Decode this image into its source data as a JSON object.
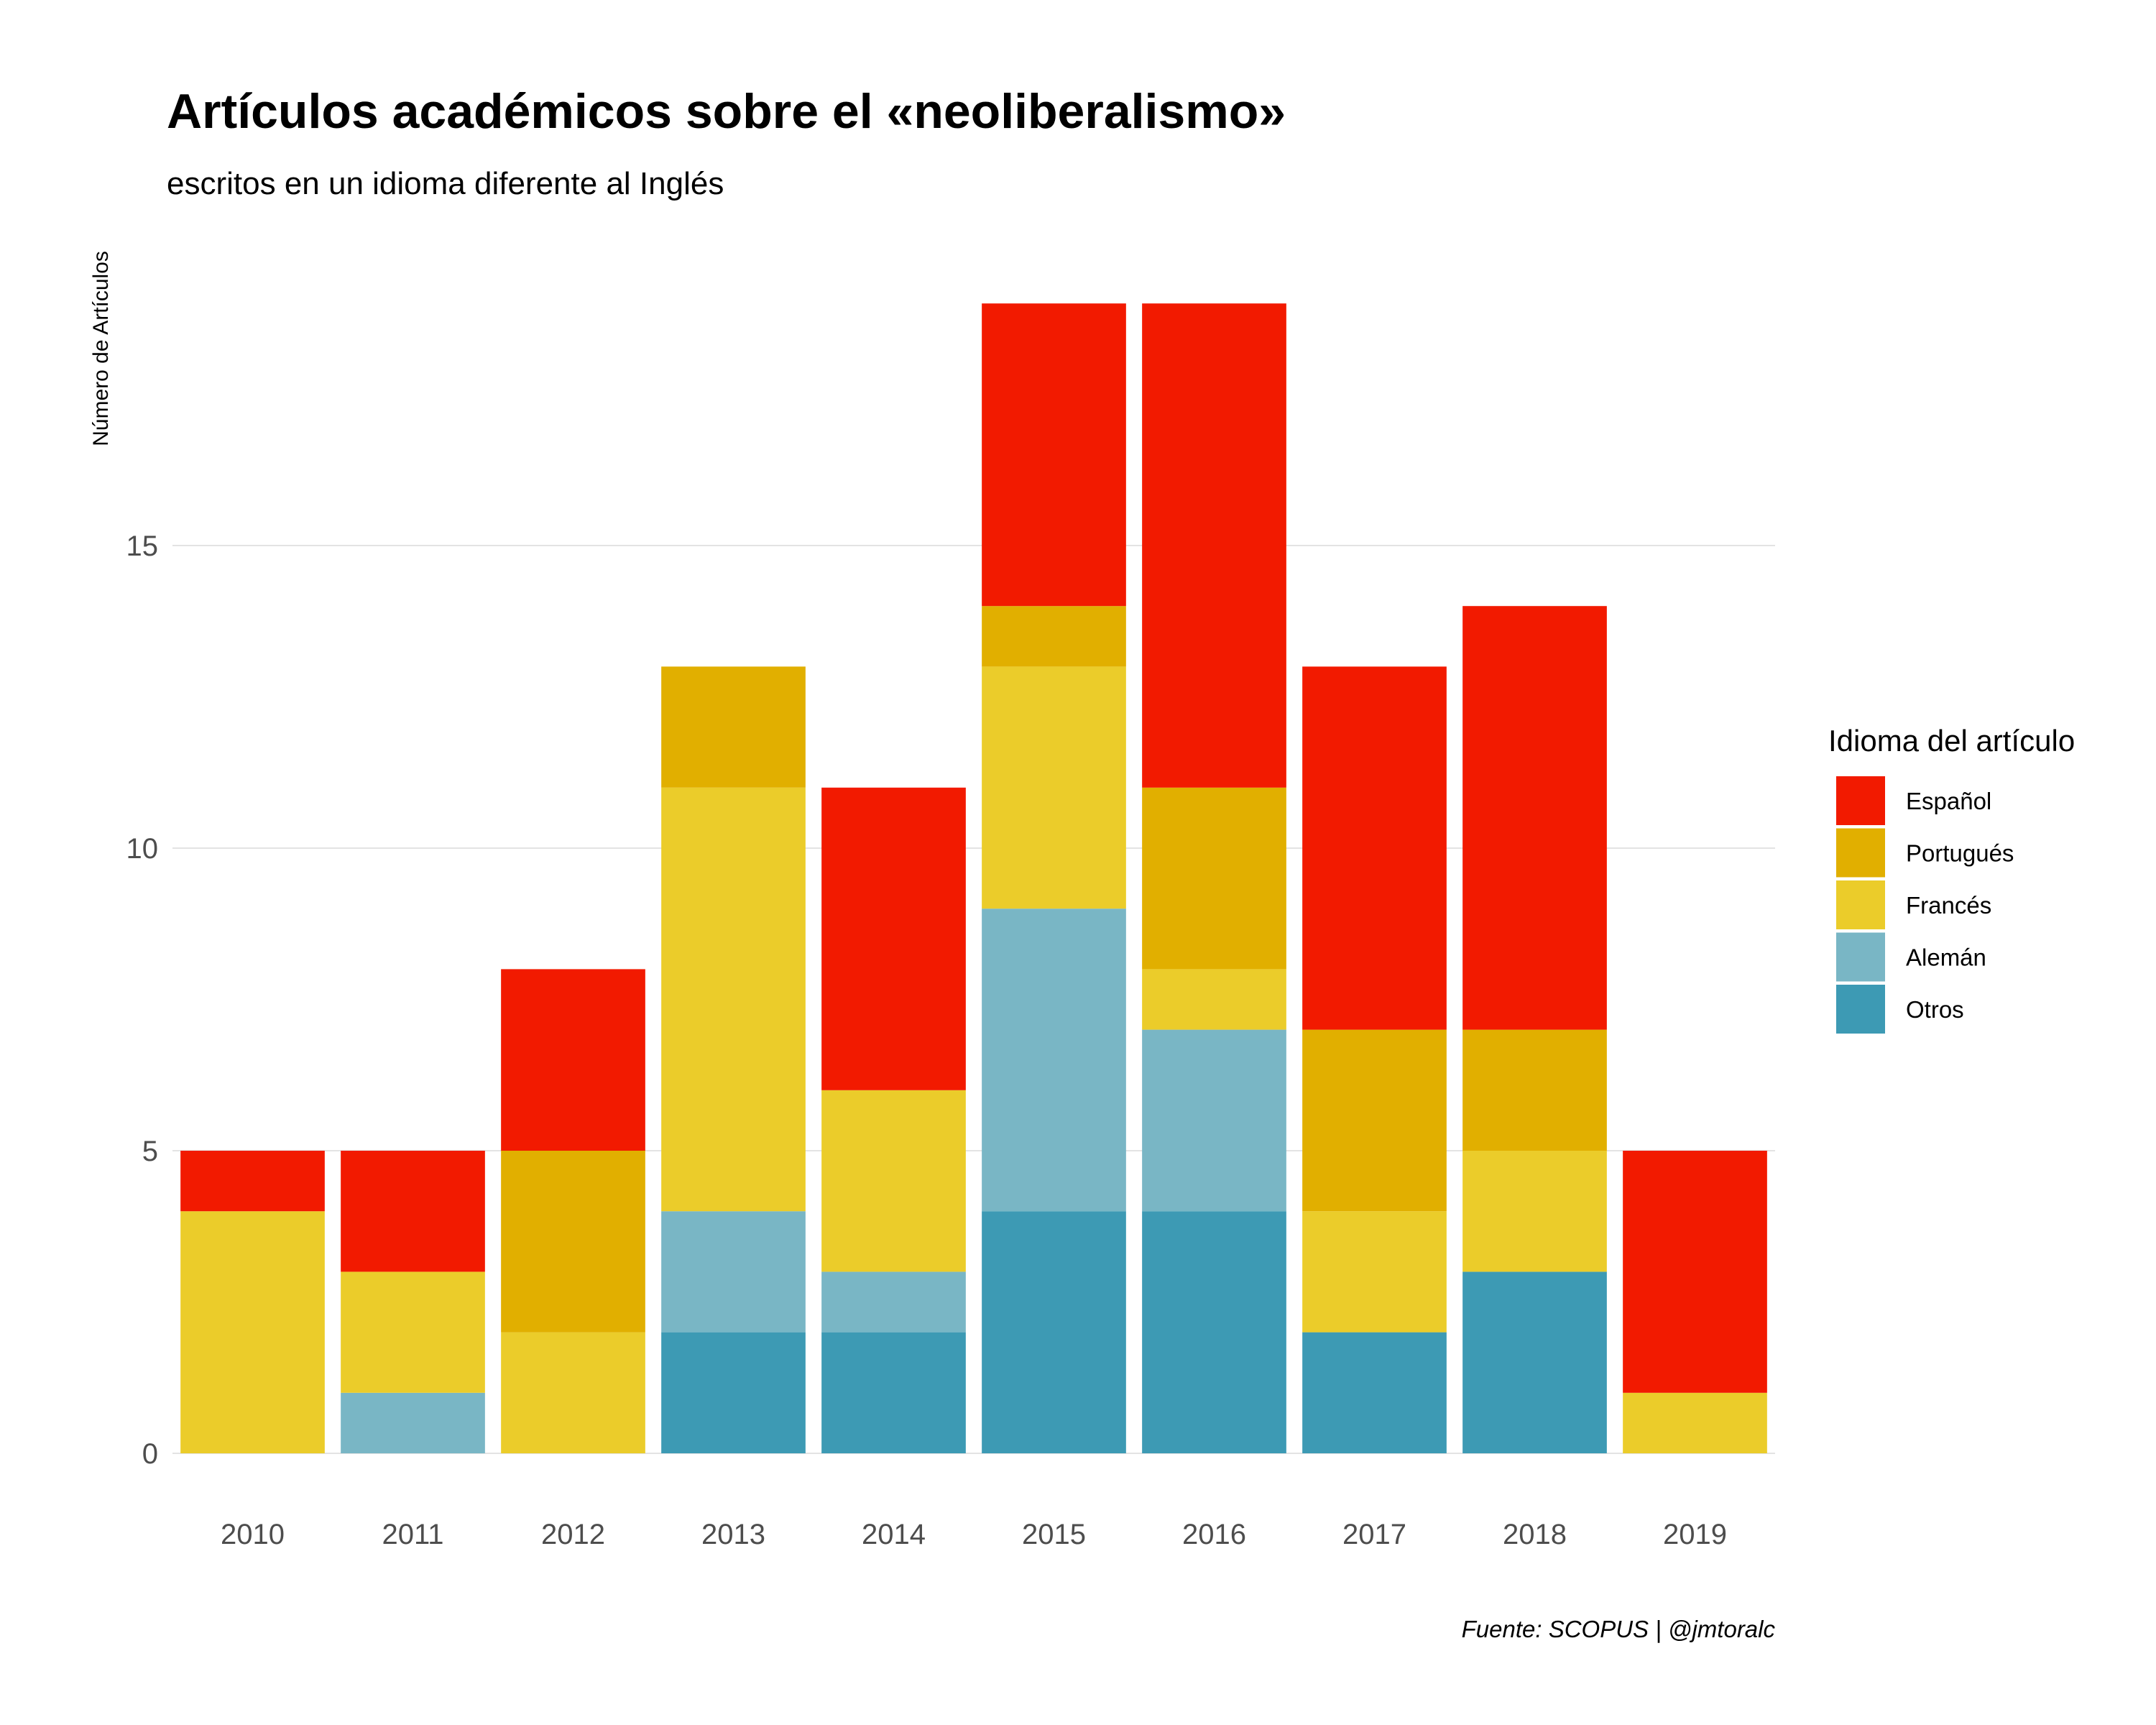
{
  "chart_data": {
    "type": "bar",
    "stacked": true,
    "title": "Artículos académicos sobre el «neoliberalismo»",
    "subtitle": "escritos en un idioma diferente al Inglés",
    "xlabel": "",
    "ylabel": "Número de Artículos",
    "caption": "Fuente: SCOPUS | @jmtoralc",
    "categories": [
      "2010",
      "2011",
      "2012",
      "2013",
      "2014",
      "2015",
      "2016",
      "2017",
      "2018",
      "2019"
    ],
    "ylim": [
      0,
      19
    ],
    "yticks": [
      0,
      5,
      10,
      15
    ],
    "grid": true,
    "legend": {
      "title": "Idioma del artículo",
      "position": "right"
    },
    "series": [
      {
        "name": "Otros",
        "color": "#3d9ab4",
        "values": [
          0,
          0,
          0,
          2,
          2,
          4,
          4,
          2,
          3,
          0
        ]
      },
      {
        "name": "Alemán",
        "color": "#79b6c5",
        "values": [
          0,
          1,
          0,
          2,
          1,
          5,
          3,
          0,
          0,
          0
        ]
      },
      {
        "name": "Francés",
        "color": "#ebcc2a",
        "values": [
          4,
          2,
          2,
          7,
          3,
          4,
          1,
          2,
          2,
          1
        ]
      },
      {
        "name": "Portugués",
        "color": "#e1af00",
        "values": [
          0,
          0,
          3,
          2,
          0,
          1,
          3,
          3,
          2,
          0
        ]
      },
      {
        "name": "Español",
        "color": "#f21a00",
        "values": [
          1,
          2,
          3,
          0,
          5,
          5,
          8,
          6,
          7,
          4
        ]
      }
    ],
    "legend_order": [
      "Español",
      "Portugués",
      "Francés",
      "Alemán",
      "Otros"
    ]
  }
}
